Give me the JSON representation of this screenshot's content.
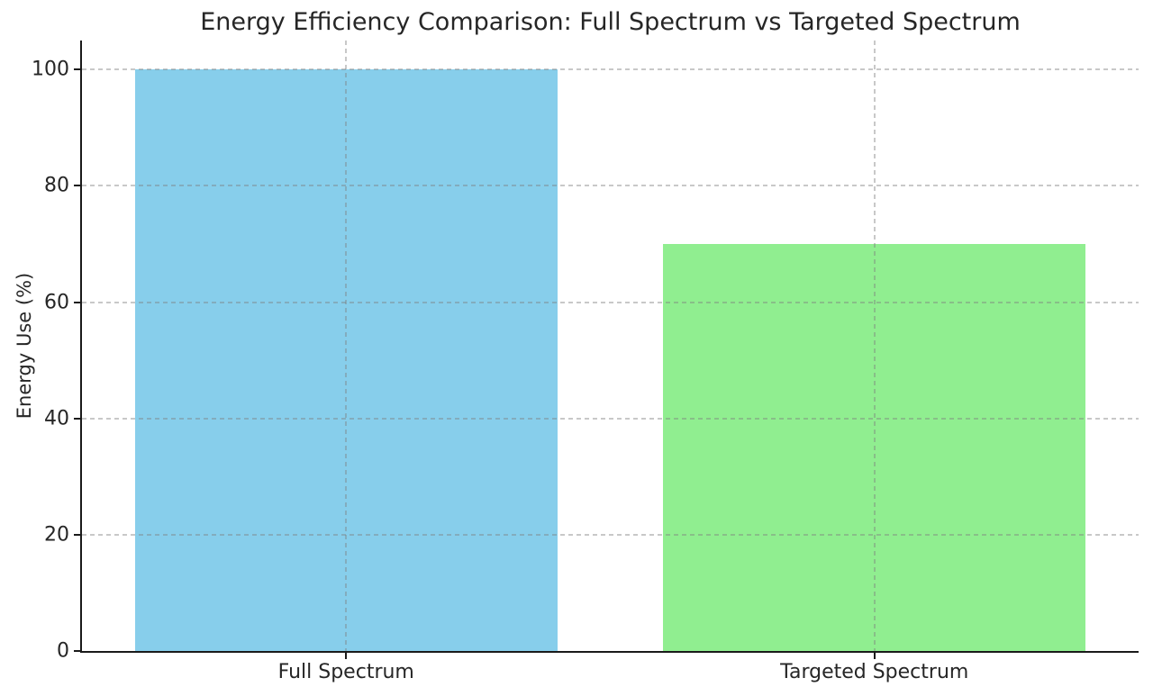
{
  "chart_data": {
    "type": "bar",
    "title": "Energy Efficiency Comparison: Full Spectrum vs Targeted Spectrum",
    "xlabel": "",
    "ylabel": "Energy Use (%)",
    "categories": [
      "Full Spectrum",
      "Targeted Spectrum"
    ],
    "values": [
      100,
      70
    ],
    "bar_colors": [
      "#87CEEB",
      "#90EE90"
    ],
    "bar_width_fraction": 0.8,
    "yticks": [
      0,
      20,
      40,
      60,
      80,
      100
    ],
    "ylim": [
      0,
      105
    ],
    "grid": {
      "visible": true,
      "axis": "both",
      "line_style": "dashed",
      "color": "#d9d9d9",
      "above_bars": true
    },
    "legend": "none",
    "background_color": "#ffffff",
    "text_color": "#262626",
    "spine_color": "#1a1a1a"
  }
}
